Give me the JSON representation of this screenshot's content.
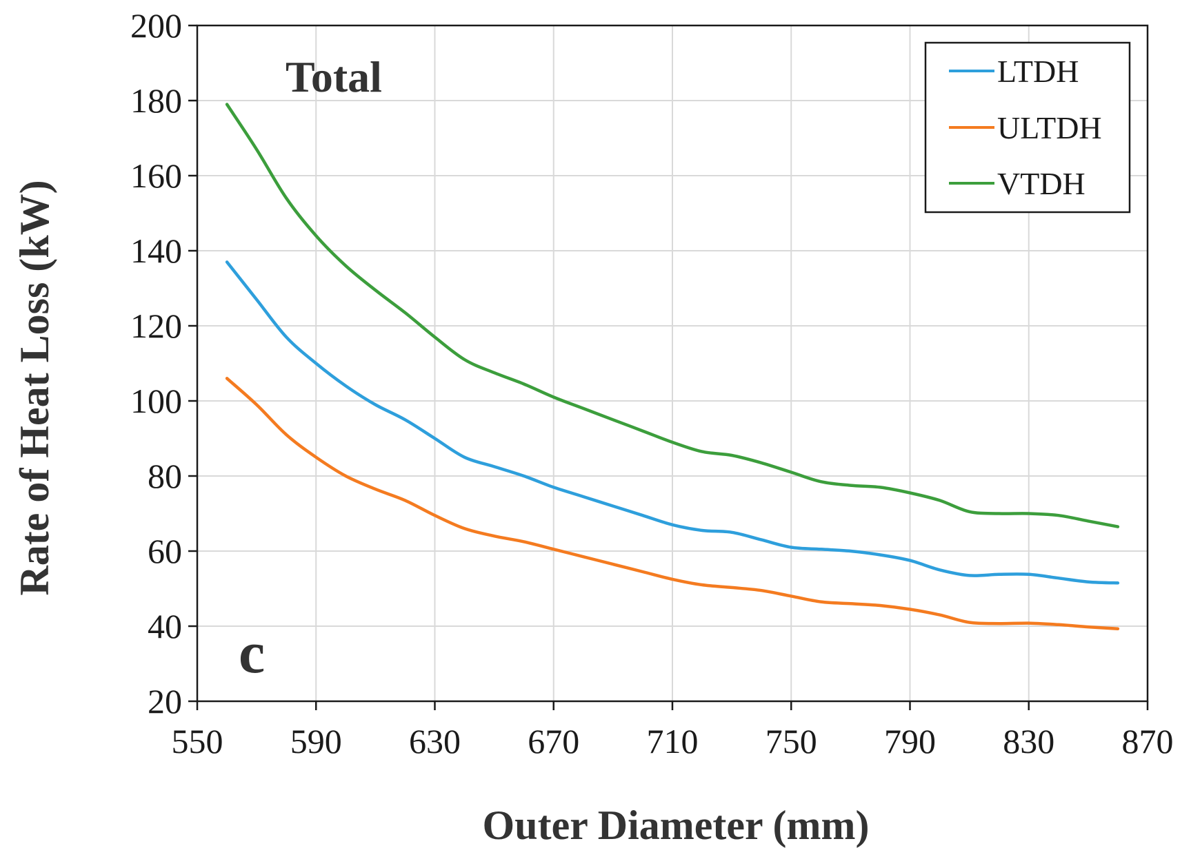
{
  "chart_data": {
    "type": "line",
    "title": "",
    "xlabel": "Outer Diameter (mm)",
    "ylabel": "Rate of Heat Loss (kW)",
    "xlim": [
      550,
      870
    ],
    "ylim": [
      20,
      200
    ],
    "xticks": [
      550,
      590,
      630,
      670,
      710,
      750,
      790,
      830,
      870
    ],
    "yticks": [
      20,
      40,
      60,
      80,
      100,
      120,
      140,
      160,
      180,
      200
    ],
    "grid": true,
    "legend_position": "top-right",
    "annotations": [
      {
        "text": "Total",
        "position": "top-left"
      },
      {
        "text": "c",
        "position": "bottom-left"
      }
    ],
    "x": [
      560,
      570,
      580,
      590,
      600,
      610,
      620,
      630,
      640,
      650,
      660,
      670,
      680,
      690,
      700,
      710,
      720,
      730,
      740,
      750,
      760,
      770,
      780,
      790,
      800,
      810,
      820,
      830,
      840,
      850,
      860
    ],
    "series": [
      {
        "name": "LTDH",
        "color": "#2e9fdc",
        "values": [
          137,
          127,
          117,
          110,
          104,
          99,
          95,
          90,
          85,
          82.5,
          80,
          77,
          74.5,
          72,
          69.5,
          67,
          65.5,
          65,
          63,
          61,
          60.5,
          60,
          59,
          57.5,
          55,
          53.5,
          53.8,
          53.8,
          52.8,
          51.8,
          51.5
        ]
      },
      {
        "name": "ULTDH",
        "color": "#f47b20",
        "values": [
          106,
          99,
          91,
          85,
          80,
          76.5,
          73.5,
          69.5,
          66,
          64,
          62.5,
          60.5,
          58.5,
          56.5,
          54.5,
          52.5,
          51,
          50.3,
          49.5,
          48,
          46.5,
          46,
          45.5,
          44.5,
          43,
          41,
          40.7,
          40.8,
          40.4,
          39.8,
          39.3
        ]
      },
      {
        "name": "VTDH",
        "color": "#3c9e3c",
        "values": [
          179,
          167,
          154,
          144,
          136,
          129.5,
          123.5,
          117,
          111,
          107.5,
          104.5,
          101,
          98,
          95,
          92,
          89,
          86.5,
          85.5,
          83.5,
          81,
          78.5,
          77.5,
          77,
          75.5,
          73.5,
          70.5,
          70,
          70,
          69.5,
          68,
          66.5
        ]
      }
    ]
  }
}
